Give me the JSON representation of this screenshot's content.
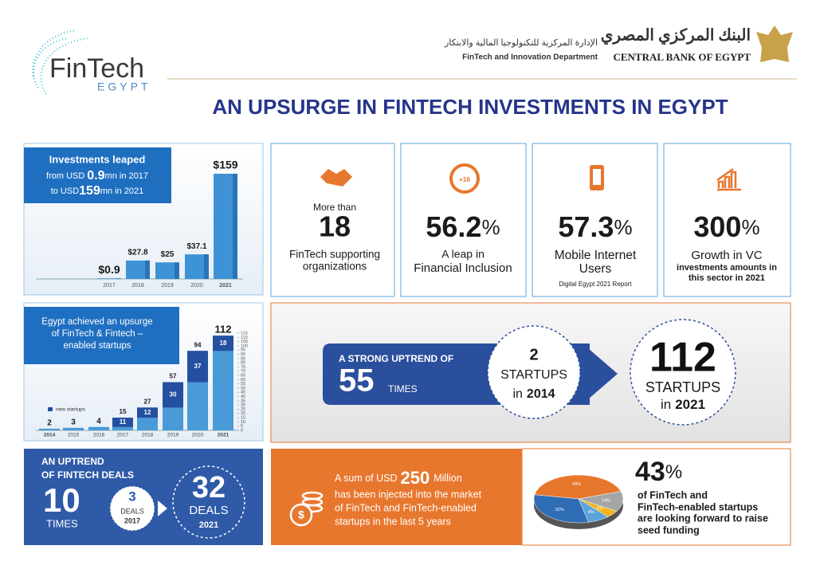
{
  "header": {
    "logo": "FinTech",
    "logo_sub": "EGYPT",
    "dept_arabic": "الإدارة المركزية للتكنولوجيا المالية والابتكار",
    "dept": "FinTech and Innovation Department",
    "bank_arabic": "البنك المركزي المصري",
    "bank": "CENTRAL BANK OF EGYPT"
  },
  "title": "AN UPSURGE IN FINTECH INVESTMENTS IN EGYPT",
  "investments": {
    "caption": [
      "Investments leaped",
      [
        "from USD",
        "0.9",
        "mn in 2017"
      ],
      [
        "to USD",
        "159",
        "mn in 2021"
      ]
    ],
    "categories": [
      "2017",
      "2018",
      "2019",
      "2020",
      "2021"
    ],
    "values": [
      0.9,
      27.8,
      25,
      37.1,
      159
    ],
    "value_labels": [
      "$0.9",
      "$27.8",
      "$25",
      "$37.1",
      "$159"
    ],
    "color": "#3d93d6"
  },
  "cards": [
    {
      "pre": "More than",
      "big": "18",
      "lines": [
        "FinTech supporting",
        "organizations"
      ]
    },
    {
      "icon": "+16",
      "big": "56.2",
      "unit": "%",
      "lines": [
        "A leap in",
        "Financial Inclusion"
      ]
    },
    {
      "big": "57.3",
      "unit": "%",
      "lines": [
        "Mobile Internet",
        "Users"
      ],
      "note": "Digital Egypt 2021 Report"
    },
    {
      "big": "300",
      "unit": "%",
      "lines": [
        "Growth in VC",
        "investments amounts in",
        "this sector in 2021"
      ]
    }
  ],
  "startups": {
    "caption": [
      "Egypt achieved an upsurge",
      "of FinTech & Fintech –",
      "enabled startups"
    ],
    "legend": "new startups",
    "categories": [
      "2014",
      "2015",
      "2016",
      "2017",
      "2018",
      "2019",
      "2020",
      "2021"
    ],
    "totals": [
      2,
      3,
      4,
      15,
      27,
      57,
      94,
      112
    ],
    "new": [
      null,
      null,
      null,
      11,
      12,
      30,
      37,
      18
    ],
    "ylim": [
      0,
      115
    ],
    "yticks": [
      0,
      5,
      10,
      15,
      20,
      25,
      30,
      35,
      40,
      45,
      50,
      55,
      60,
      65,
      70,
      75,
      80,
      85,
      90,
      95,
      100,
      105,
      110,
      115
    ],
    "total_color": "#4a9ad8",
    "new_color": "#24509f"
  },
  "uptrend": {
    "lead": "A STRONG UPTREND OF",
    "big": "55",
    "unit": "TIMES",
    "from_num": "2",
    "from_label": "STARTUPS",
    "from_in": "in",
    "from_year": "2014",
    "to_num": "112",
    "to_label": "STARTUPS",
    "to_in": "in",
    "to_year": "2021"
  },
  "deals": {
    "title": [
      "AN UPTREND",
      "OF FINTECH DEALS"
    ],
    "big": "10",
    "unit": "TIMES",
    "from_num": "3",
    "from_label": "DEALS",
    "from_year": "2017",
    "to_num": "32",
    "to_label": "DEALS",
    "to_year": "2021"
  },
  "injection": {
    "pre": "A sum of USD",
    "amount": "250",
    "post": "Million",
    "lines": [
      "has been injected into the market",
      "of FinTech and FinTech-enabled",
      "startups in the last 5 years"
    ]
  },
  "seed": {
    "big": "43",
    "unit": "%",
    "lines": [
      "of FinTech and",
      "FinTech-enabled startups",
      "are looking forward to raise",
      "seed funding"
    ],
    "values": [
      43,
      14,
      5,
      8,
      32
    ],
    "value_labels": [
      "43%",
      "14%",
      "5%",
      "8%",
      "32%"
    ],
    "colors": [
      "#e8772e",
      "#a6a6a6",
      "#f2b320",
      "#5ba3d9",
      "#2f6db5"
    ]
  }
}
